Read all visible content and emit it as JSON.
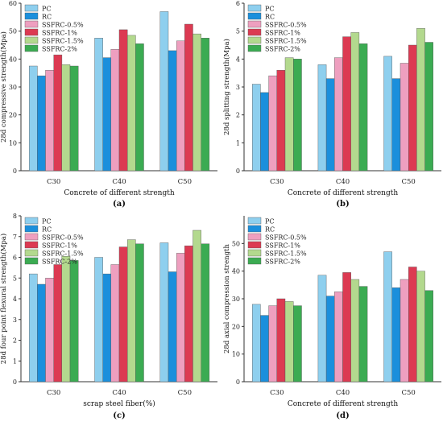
{
  "colors": {
    "PC": "#8ecfee",
    "RC": "#1b8fdc",
    "SSFRC-0.5%": "#ee9fbf",
    "SSFRC-1%": "#dc3a52",
    "SSFRC-1.5%": "#b3d98e",
    "SSFRC-2%": "#3bab52"
  },
  "chart_data": [
    {
      "type": "bar",
      "panel_label": "(a)",
      "categories": [
        "C30",
        "C40",
        "C50"
      ],
      "xlabel": "Concrete of different strength",
      "ylabel": "28d compressive strength(Mpa)",
      "ylim": [
        0,
        60
      ],
      "yticks": [
        0,
        10,
        20,
        30,
        40,
        50,
        60
      ],
      "grid": false,
      "legend": "top-left",
      "legend_labels": [
        "PC",
        "RC",
        "SSFRC-0.5%",
        "SSFRC-1%",
        "SSFRC-1.5%",
        "SSFRC-2%"
      ],
      "series": [
        {
          "name": "PC",
          "values": [
            37.5,
            47.5,
            57
          ]
        },
        {
          "name": "RC",
          "values": [
            34,
            40.5,
            43
          ]
        },
        {
          "name": "SSFRC-0.5%",
          "values": [
            36,
            43.5,
            46.5
          ]
        },
        {
          "name": "SSFRC-1%",
          "values": [
            41.5,
            50.5,
            52.5
          ]
        },
        {
          "name": "SSFRC-1.5%",
          "values": [
            38,
            48.5,
            49
          ]
        },
        {
          "name": "SSFRC-2%",
          "values": [
            37.5,
            45.5,
            47.5
          ]
        }
      ]
    },
    {
      "type": "bar",
      "panel_label": "(b)",
      "categories": [
        "C30",
        "C40",
        "C50"
      ],
      "xlabel": "Concrete of different strength",
      "ylabel": "28d splitting strength(Mpa)",
      "ylim": [
        0,
        6
      ],
      "yticks": [
        0,
        1,
        2,
        3,
        4,
        5,
        6
      ],
      "grid": false,
      "legend": "top-left",
      "legend_labels": [
        "PC",
        "RC",
        "SSFRC-0.5%",
        "SSFRC-1%",
        "SSFRC-1.5%",
        "SSFRC-2%"
      ],
      "series": [
        {
          "name": "PC",
          "values": [
            3.1,
            3.8,
            4.1
          ]
        },
        {
          "name": "RC",
          "values": [
            2.8,
            3.3,
            3.3
          ]
        },
        {
          "name": "SSFRC-0.5%",
          "values": [
            3.4,
            4.05,
            3.85
          ]
        },
        {
          "name": "SSFRC-1%",
          "values": [
            3.6,
            4.8,
            4.5
          ]
        },
        {
          "name": "SSFRC-1.5%",
          "values": [
            4.05,
            4.95,
            5.1
          ]
        },
        {
          "name": "SSFRC-2%",
          "values": [
            4.0,
            4.55,
            4.6
          ]
        }
      ]
    },
    {
      "type": "bar",
      "panel_label": "(c)",
      "categories": [
        "C30",
        "C40",
        "C50"
      ],
      "xlabel": "scrap steel fiber(%)",
      "ylabel": "28d four point flexural strength(Mpa)",
      "ylim": [
        0,
        8
      ],
      "yticks": [
        0,
        1,
        2,
        3,
        4,
        5,
        6,
        7,
        8
      ],
      "grid": false,
      "legend": "top-left",
      "legend_labels": [
        "PC",
        "RC",
        "SSFRC-0.5%",
        "SSFRC-1%",
        "SSFRC-1.5%",
        "SSFRC-2%"
      ],
      "series": [
        {
          "name": "PC",
          "values": [
            5.2,
            6.0,
            6.7
          ]
        },
        {
          "name": "RC",
          "values": [
            4.7,
            5.2,
            5.3
          ]
        },
        {
          "name": "SSFRC-0.5%",
          "values": [
            5.0,
            5.65,
            6.2
          ]
        },
        {
          "name": "SSFRC-1%",
          "values": [
            5.65,
            6.5,
            6.55
          ]
        },
        {
          "name": "SSFRC-1.5%",
          "values": [
            6.05,
            6.85,
            7.3
          ]
        },
        {
          "name": "SSFRC-2%",
          "values": [
            5.85,
            6.65,
            6.65
          ]
        }
      ]
    },
    {
      "type": "bar",
      "panel_label": "(d)",
      "categories": [
        "C30",
        "C40",
        "C50"
      ],
      "xlabel": "Concrete of different strength",
      "ylabel": "28d axial compression strength",
      "ylim": [
        0,
        60
      ],
      "yticks": [
        0,
        10,
        20,
        30,
        40,
        50
      ],
      "grid": false,
      "legend": "top-left",
      "legend_labels": [
        "PC",
        "RC",
        "SSFRC-0.5%",
        "SSFRC-1%",
        "SSFRC-1.5%",
        "SSFRC-2%"
      ],
      "series": [
        {
          "name": "PC",
          "values": [
            28,
            38.5,
            47
          ]
        },
        {
          "name": "RC",
          "values": [
            24,
            31,
            34
          ]
        },
        {
          "name": "SSFRC-0.5%",
          "values": [
            27.5,
            32.5,
            37
          ]
        },
        {
          "name": "SSFRC-1%",
          "values": [
            30,
            39.5,
            41.5
          ]
        },
        {
          "name": "SSFRC-1.5%",
          "values": [
            29,
            37,
            40
          ]
        },
        {
          "name": "SSFRC-2%",
          "values": [
            27.5,
            34.5,
            33
          ]
        }
      ]
    }
  ]
}
